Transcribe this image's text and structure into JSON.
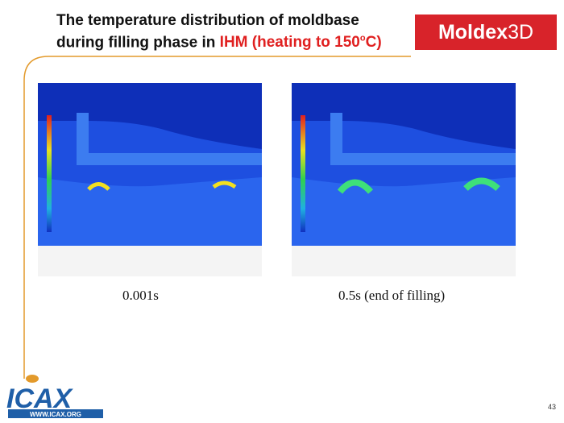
{
  "title": {
    "line1": "The temperature distribution of moldbase",
    "line2": {
      "text": "during filling phase in ",
      "highlight": "IHM (heating to 150",
      "degree": "o",
      "end": "C)"
    }
  },
  "logo": {
    "brand": "Moldex",
    "brand_3d": "3D"
  },
  "panels": [
    {
      "caption": "0.001s"
    },
    {
      "caption": "0.5s (end of filling)"
    }
  ],
  "footer": {
    "site": "WWW.ICAX.ORG",
    "org": "ICAX",
    "page": "43"
  }
}
